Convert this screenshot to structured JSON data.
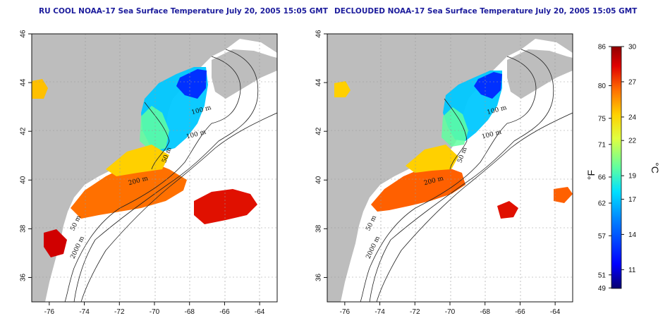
{
  "panels": [
    {
      "title": "RU COOL NOAA-17 Sea Surface Temperature July 20, 2005 15:05 GMT"
    },
    {
      "title": "DECLOUDED NOAA-17 Sea Surface Temperature July 20, 2005 15:05 GMT"
    }
  ],
  "map": {
    "lon_range": [
      -77,
      -63
    ],
    "lat_range": [
      35,
      46
    ],
    "lon_ticks": [
      -76,
      -74,
      -72,
      -70,
      -68,
      -66,
      -64
    ],
    "lat_ticks": [
      36,
      38,
      40,
      42,
      44,
      46
    ],
    "land_color": "#bdbdbd",
    "ocean_color": "#ffffff",
    "grid": "dotted"
  },
  "contour_labels": [
    {
      "text": "100 m",
      "lon": -67.3,
      "lat": 42.8
    },
    {
      "text": "100 m",
      "lon": -67.6,
      "lat": 41.8
    },
    {
      "text": "50 m",
      "lon": -69.2,
      "lat": 41.0
    },
    {
      "text": "200 m",
      "lon": -70.9,
      "lat": 39.9
    },
    {
      "text": "50 m",
      "lon": -74.4,
      "lat": 38.2
    },
    {
      "text": "2000 m",
      "lon": -74.3,
      "lat": 37.2
    }
  ],
  "colorbar": {
    "celsius_ticks": [
      "30",
      "27",
      "24",
      "22",
      "19",
      "17",
      "14",
      "11"
    ],
    "fahrenheit_ticks": [
      "86",
      "80",
      "75",
      "71",
      "66",
      "62",
      "57",
      "51",
      "49"
    ],
    "unit_f": "°F",
    "unit_c": "°C",
    "c_range": [
      9.4,
      30
    ],
    "colors": [
      "#08006e",
      "#0000ff",
      "#0080ff",
      "#00e0ff",
      "#60ffa0",
      "#e0ff40",
      "#ffd000",
      "#ff7000",
      "#e00000",
      "#900000"
    ]
  }
}
